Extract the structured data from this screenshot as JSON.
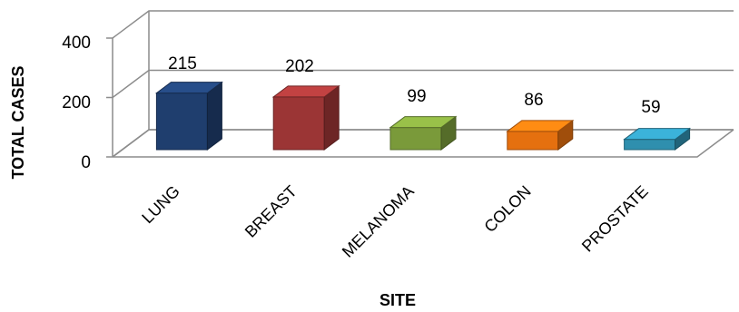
{
  "chart_data": {
    "type": "bar",
    "title": "",
    "xlabel": "SITE",
    "ylabel": "TOTAL CASES",
    "categories": [
      "LUNG",
      "BREAST",
      "MELANOMA",
      "COLON",
      "PROSTATE"
    ],
    "values": [
      215,
      202,
      99,
      86,
      59
    ],
    "data_labels": [
      "215",
      "202",
      "99",
      "86",
      "59"
    ],
    "colors": [
      "#1F3E6E",
      "#9B3535",
      "#7A9A3A",
      "#E5700F",
      "#2F8FAE"
    ],
    "yticks": [
      "0",
      "200",
      "400"
    ],
    "ylim": [
      0,
      400
    ],
    "grid": true,
    "legend": "none",
    "style": "3d-clustered-column"
  }
}
